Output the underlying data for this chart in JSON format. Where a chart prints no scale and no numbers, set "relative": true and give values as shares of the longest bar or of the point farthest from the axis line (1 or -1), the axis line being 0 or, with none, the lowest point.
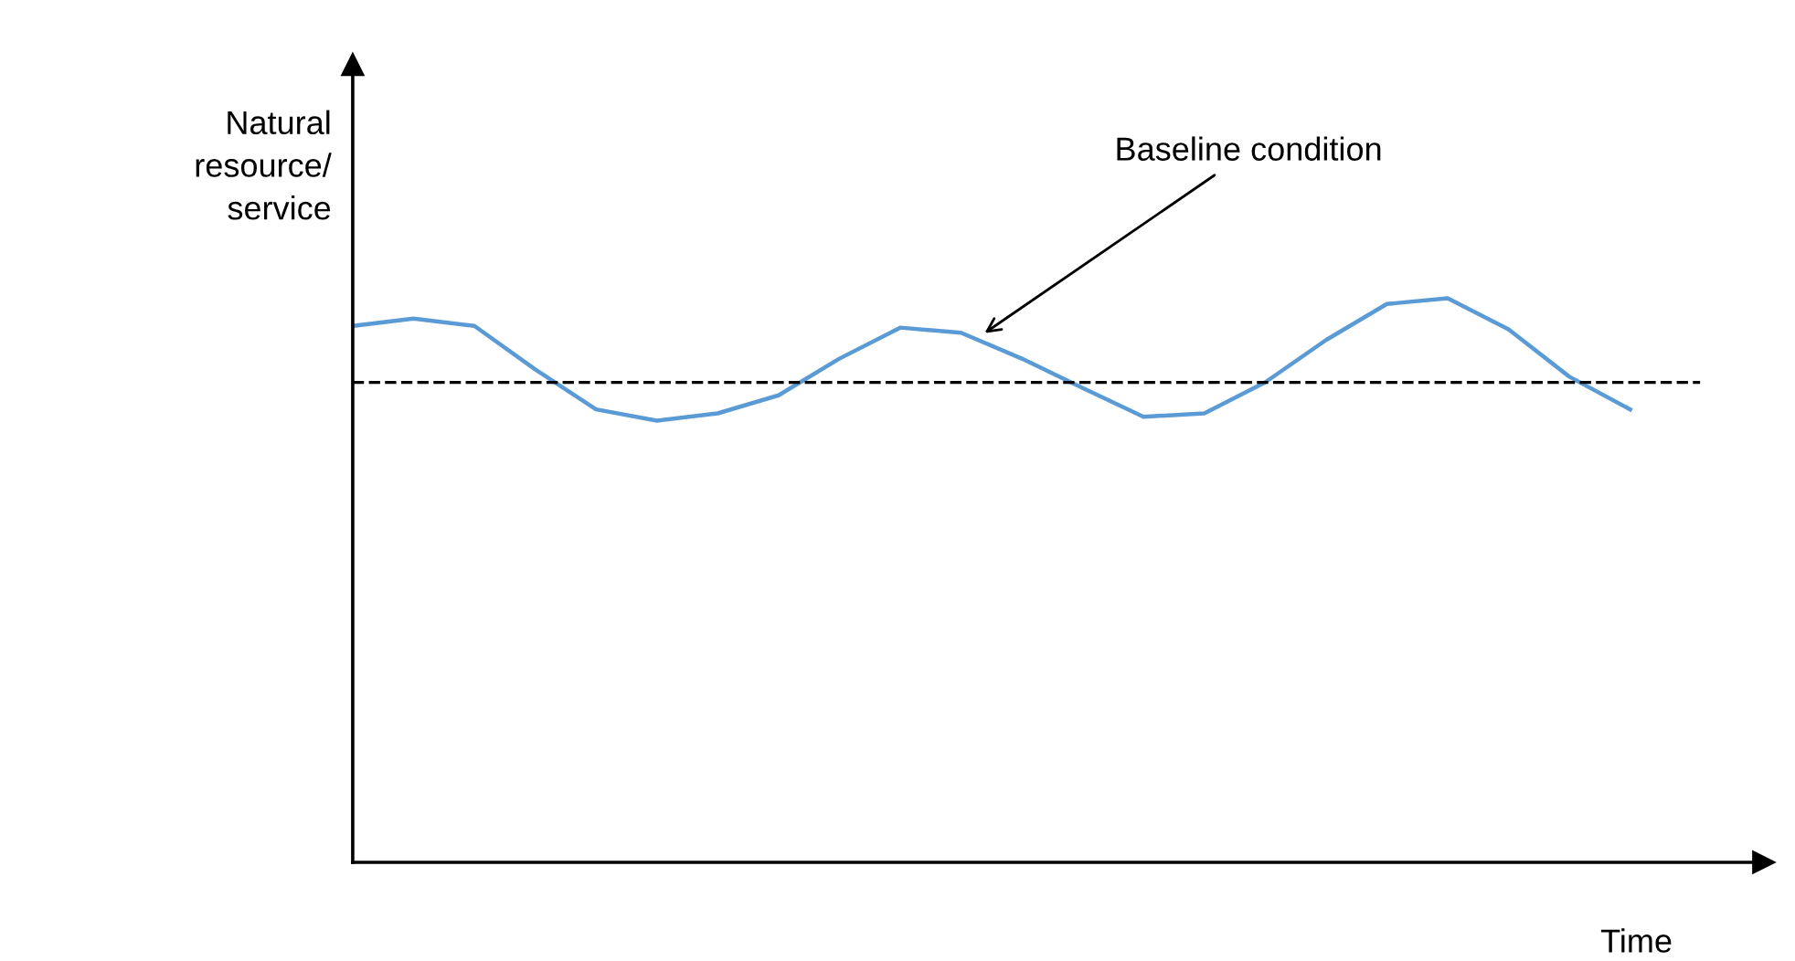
{
  "chart_data": {
    "type": "line",
    "relative": true,
    "xlabel": "Time",
    "ylabel": "Natural\nresource/\nservice",
    "categories": [
      null,
      null,
      null,
      null,
      null,
      null,
      null,
      null,
      null,
      null,
      null,
      null,
      null,
      null,
      null,
      null,
      null,
      null,
      null,
      null,
      null,
      null
    ],
    "series": [
      {
        "color": "#5b9bd5",
        "values": [
          0.951,
          0.964,
          0.951,
          0.874,
          0.803,
          0.783,
          0.796,
          0.828,
          0.893,
          0.948,
          0.939,
          0.893,
          0.841,
          0.79,
          0.796,
          0.851,
          0.926,
          0.99,
          1.0,
          0.945,
          0.861,
          0.803
        ]
      }
    ],
    "ref_lines": [
      {
        "axis": "y",
        "value": 0.851,
        "color": "#000000",
        "line_style": "dashed"
      }
    ],
    "annotations": [
      "Baseline condition"
    ],
    "grid": false,
    "legend": false,
    "marker": "none",
    "line_style": "solid"
  }
}
